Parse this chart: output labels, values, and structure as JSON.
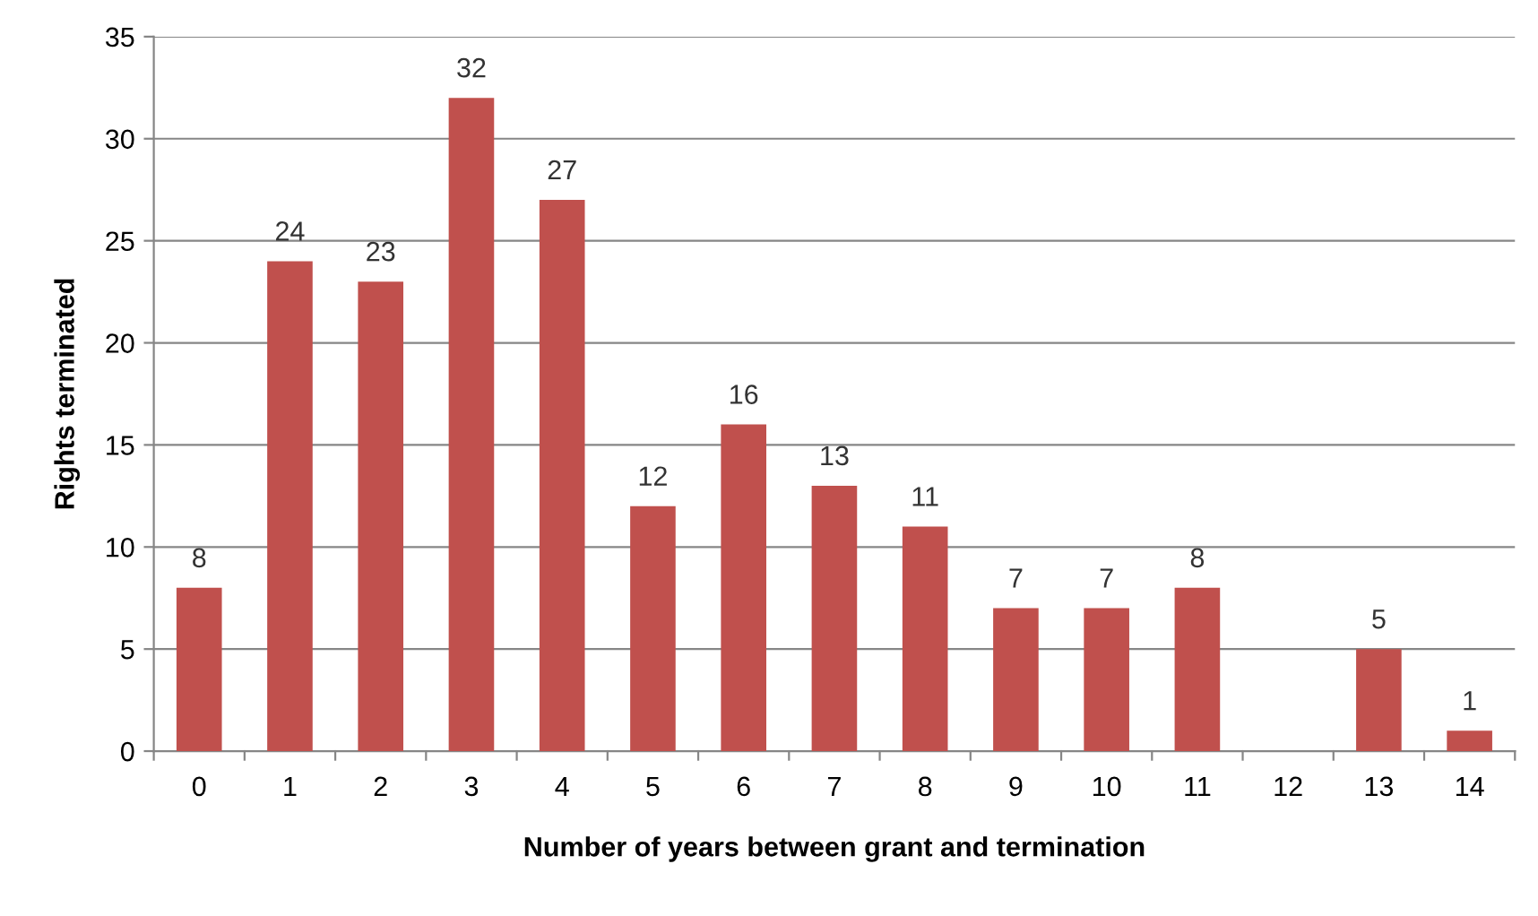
{
  "chart_data": {
    "type": "bar",
    "xlabel": "Number of years between grant and termination",
    "ylabel": "Rights terminated",
    "categories": [
      "0",
      "1",
      "2",
      "3",
      "4",
      "5",
      "6",
      "7",
      "8",
      "9",
      "10",
      "11",
      "12",
      "13",
      "14"
    ],
    "values": [
      8,
      24,
      23,
      32,
      27,
      12,
      16,
      13,
      11,
      7,
      7,
      8,
      0,
      5,
      1
    ],
    "value_labels": [
      "8",
      "24",
      "23",
      "32",
      "27",
      "12",
      "16",
      "13",
      "11",
      "7",
      "7",
      "8",
      null,
      "5",
      "1"
    ],
    "color": "#c0504d",
    "ylim": [
      0,
      35
    ],
    "yticks": [
      0,
      5,
      10,
      15,
      20,
      25,
      30,
      35
    ],
    "grid": "y",
    "legend": false
  }
}
